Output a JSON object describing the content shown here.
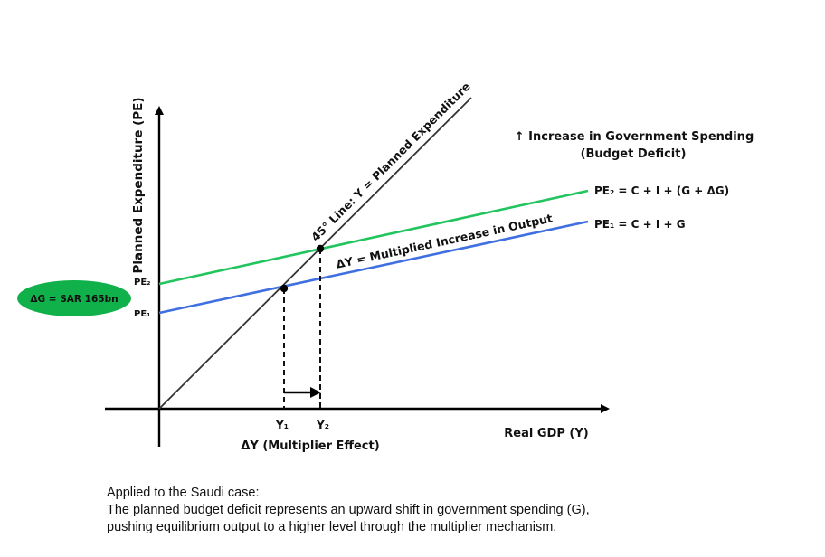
{
  "diagram": {
    "y_axis_label": "Planned Expenditure (PE)",
    "x_axis_label": "Real GDP (Y)",
    "line_45_label": "45° Line: Y = Planned Expenditure",
    "pe2_tick": "PE₂",
    "pe1_tick": "PE₁",
    "pe2_equation": "PE₂ = C + I + (G + ΔG)",
    "pe1_equation": "PE₁ = C + I + G",
    "increase_title_line1": "↑ Increase in Government Spending",
    "increase_title_line2": "(Budget Deficit)",
    "delta_y_label": "ΔY = Multiplied Increase in Output",
    "y1_label": "Y₁",
    "y2_label": "Y₂",
    "multiplier_label": "ΔY (Multiplier Effect)",
    "delta_g_badge": "ΔG = SAR 165bn"
  },
  "colors": {
    "pe2_line": "#22c45e",
    "pe1_line": "#3f6fe0",
    "badge_fill": "#10b14a",
    "axis": "#000000"
  },
  "caption": {
    "line1": "Applied to the Saudi case:",
    "line2": "The planned budget deficit represents an upward shift in government spending (G),",
    "line3": "pushing equilibrium output to a higher level through the multiplier mechanism."
  }
}
